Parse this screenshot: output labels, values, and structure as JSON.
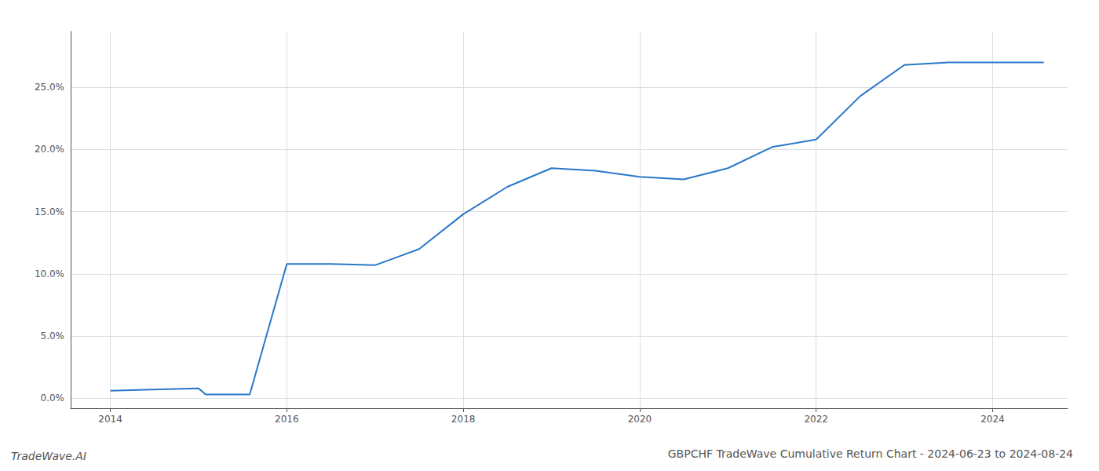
{
  "chart_data": {
    "type": "line",
    "title": "GBPCHF TradeWave Cumulative Return Chart - 2024-06-23 to 2024-08-24",
    "annotations": [
      "TradeWave.AI"
    ],
    "x": [
      2014.0,
      2014.47,
      2015.0,
      2015.08,
      2015.58,
      2016.0,
      2016.5,
      2017.0,
      2017.5,
      2018.0,
      2018.5,
      2019.0,
      2019.5,
      2020.0,
      2020.5,
      2021.0,
      2021.5,
      2022.0,
      2022.5,
      2023.0,
      2023.5,
      2024.0,
      2024.58
    ],
    "values": [
      0.006,
      0.007,
      0.008,
      0.003,
      0.003,
      0.108,
      0.108,
      0.107,
      0.12,
      0.148,
      0.17,
      0.185,
      0.183,
      0.178,
      0.176,
      0.185,
      0.202,
      0.208,
      0.243,
      0.268,
      0.27,
      0.27,
      0.27
    ],
    "color": "#2878C8",
    "xlim": [
      2013.55,
      2024.85
    ],
    "xticks": [
      2014,
      2016,
      2018,
      2020,
      2022,
      2024
    ],
    "ylim": [
      -0.008,
      0.295
    ],
    "yticks": [
      {
        "value": 0.0,
        "label": "0.0%"
      },
      {
        "value": 0.05,
        "label": "5.0%"
      },
      {
        "value": 0.1,
        "label": "10.0%"
      },
      {
        "value": 0.15,
        "label": "15.0%"
      },
      {
        "value": 0.2,
        "label": "20.0%"
      },
      {
        "value": 0.25,
        "label": "25.0%"
      }
    ],
    "grid": true
  }
}
